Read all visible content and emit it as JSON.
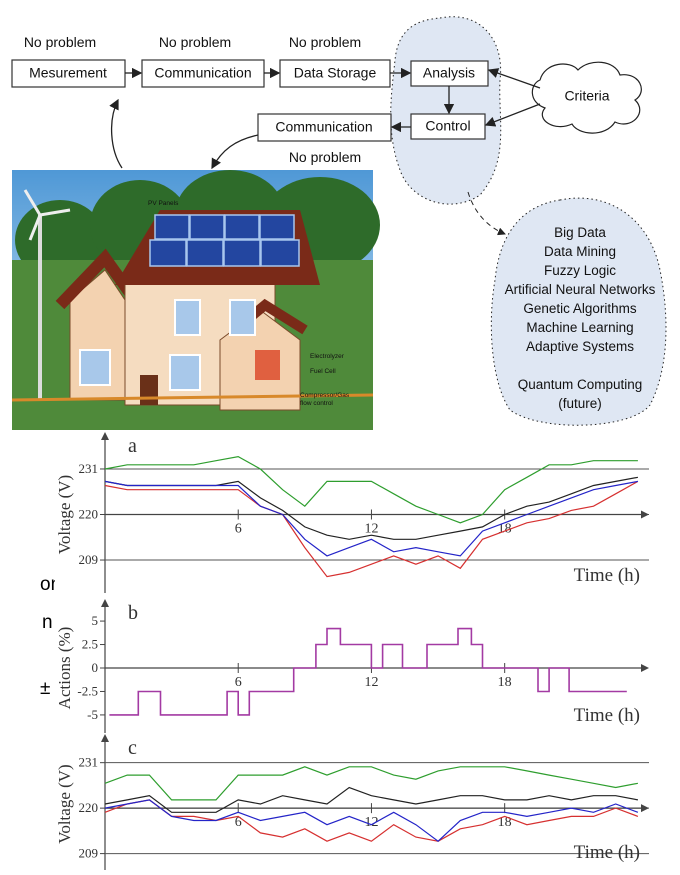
{
  "diagram": {
    "no_problem_labels": [
      "No problem",
      "No problem",
      "No problem",
      "No problem"
    ],
    "nodes": [
      "Mesurement",
      "Communication",
      "Data Storage",
      "Analysis",
      "Control",
      "Communication",
      "Criteria"
    ],
    "methods": [
      "Big Data",
      "Data Mining",
      "Fuzzy Logic",
      "Artificial Neural Networks",
      "Genetic Algorithms",
      "Machine Learning",
      "Adaptive Systems",
      "Quantum Computing",
      "(future)"
    ],
    "house_labels": [
      "PV Panels",
      "Electrolyzer",
      "Fuel Cell",
      "Compressor/Gas",
      "flow control"
    ],
    "cut_text": [
      "on",
      "n",
      "±"
    ]
  },
  "chart_data": [
    {
      "type": "line",
      "title": "a",
      "y_label": "Voltage (V)",
      "x_label": "Time (h)",
      "x": [
        0,
        1,
        2,
        3,
        4,
        5,
        6,
        7,
        8,
        9,
        10,
        11,
        12,
        13,
        14,
        15,
        16,
        17,
        18,
        19,
        20,
        21,
        22,
        23,
        24
      ],
      "xlim": [
        0,
        24.5
      ],
      "xticks": [
        6,
        12,
        18
      ],
      "ylim": [
        202,
        238
      ],
      "yticks": [
        209,
        220,
        231
      ],
      "grid": true,
      "series": [
        {
          "color": "#2e9e2e",
          "values": [
            231,
            232,
            232,
            232,
            232,
            233,
            234,
            231,
            226,
            222,
            228,
            228,
            228,
            225,
            222,
            220,
            218,
            220,
            226,
            229,
            232,
            232,
            233,
            233,
            233
          ]
        },
        {
          "color": "#222222",
          "values": [
            228,
            227,
            227,
            227,
            227,
            227,
            228,
            224,
            221,
            217,
            215,
            214,
            215,
            214,
            214,
            215,
            216,
            217,
            220,
            222,
            223,
            225,
            227,
            228,
            229
          ]
        },
        {
          "color": "#d63030",
          "values": [
            227,
            226,
            226,
            226,
            226,
            226,
            226,
            222,
            220,
            212,
            205,
            206,
            208,
            210,
            208,
            210,
            207,
            214,
            216,
            218,
            219,
            221,
            222,
            225,
            228
          ]
        },
        {
          "color": "#2424c8",
          "values": [
            228,
            227,
            227,
            227,
            227,
            227,
            227,
            222,
            220,
            214,
            210,
            212,
            214,
            211,
            212,
            211,
            210,
            216,
            218,
            220,
            222,
            224,
            226,
            227,
            228
          ]
        }
      ]
    },
    {
      "type": "step",
      "title": "b",
      "y_label": "Actions (%)",
      "x_label": "Time (h)",
      "x": [
        0.2,
        1.5,
        2.5,
        5.5,
        6,
        6.5,
        8.5,
        9.5,
        10,
        10.6,
        12,
        12.5,
        13.4,
        14.5,
        15.9,
        16.5,
        17,
        19.5,
        20,
        20.9,
        23.5
      ],
      "xlim": [
        0,
        24.5
      ],
      "xticks": [
        6,
        12,
        18
      ],
      "ylim": [
        -6.5,
        6.5
      ],
      "yticks": [
        -5,
        -2.5,
        0,
        2.5,
        5
      ],
      "grid": false,
      "series": [
        {
          "color": "#a33aa3",
          "values": [
            -5,
            -2.5,
            -5,
            -2.5,
            -5,
            -2.5,
            0,
            2.5,
            4.2,
            2.5,
            0,
            2.5,
            0,
            2.5,
            4.2,
            2.5,
            0,
            -2.5,
            0,
            -2.5,
            -2.5
          ]
        }
      ]
    },
    {
      "type": "line",
      "title": "c",
      "y_label": "Voltage (V)",
      "x_label": "Time (h)",
      "x": [
        0,
        1,
        2,
        3,
        4,
        5,
        6,
        7,
        8,
        9,
        10,
        11,
        12,
        13,
        14,
        15,
        16,
        17,
        18,
        19,
        20,
        21,
        22,
        23,
        24
      ],
      "xlim": [
        0,
        24.5
      ],
      "xticks": [
        6,
        12,
        18
      ],
      "ylim": [
        206,
        236
      ],
      "yticks": [
        209,
        220,
        231
      ],
      "grid": true,
      "series": [
        {
          "color": "#2e9e2e",
          "values": [
            226,
            228,
            228,
            222,
            222,
            222,
            228,
            228,
            228,
            230,
            228,
            230,
            230,
            228,
            227,
            229,
            230,
            230,
            230,
            229,
            228,
            227,
            226,
            225,
            226
          ]
        },
        {
          "color": "#222222",
          "values": [
            221,
            222,
            223,
            219,
            219,
            219,
            222,
            221,
            223,
            222,
            221,
            225,
            223,
            222,
            221,
            222,
            223,
            223,
            222,
            222,
            223,
            222,
            223,
            223,
            222
          ]
        },
        {
          "color": "#d63030",
          "values": [
            219,
            221,
            222,
            218,
            218,
            217,
            218,
            214,
            213,
            215,
            212,
            214,
            212,
            216,
            213,
            212,
            215,
            216,
            218,
            216,
            217,
            218,
            218,
            220,
            218
          ]
        },
        {
          "color": "#2424c8",
          "values": [
            220,
            221,
            222,
            218,
            217,
            217,
            219,
            217,
            218,
            219,
            216,
            218,
            216,
            219,
            216,
            212,
            217,
            219,
            219,
            218,
            219,
            220,
            219,
            221,
            219
          ]
        }
      ]
    }
  ]
}
